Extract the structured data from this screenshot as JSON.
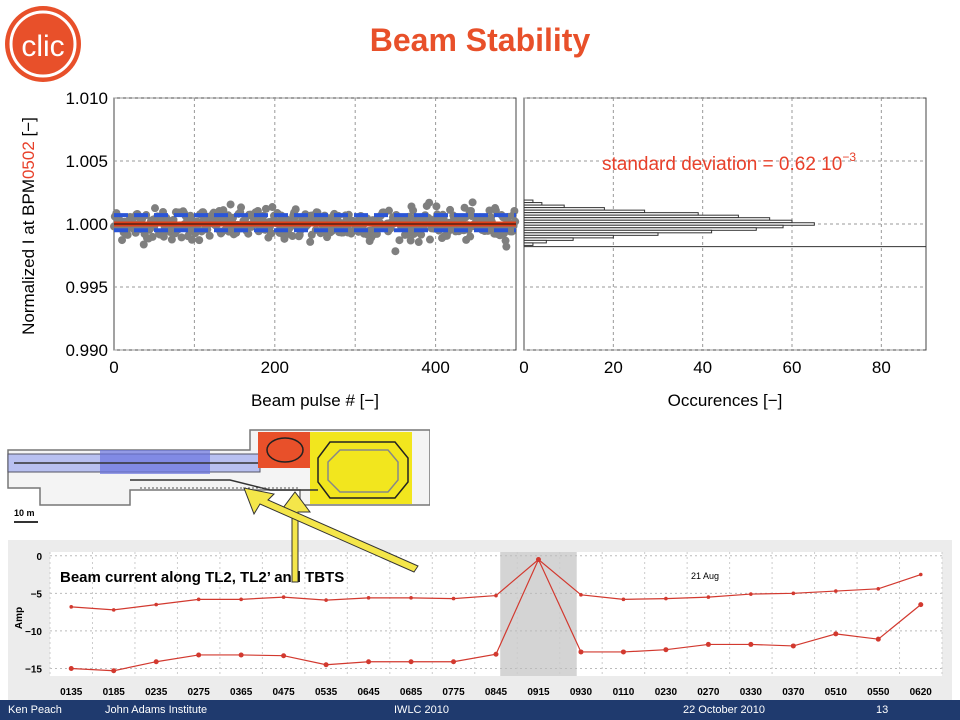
{
  "slide": {
    "title": "Beam Stability",
    "logo_text": "clic"
  },
  "footer": {
    "author": "Ken Peach",
    "institute": "John Adams Institute",
    "event": "IWLC 2010",
    "date": "22 October 2010",
    "page": "13"
  },
  "annotation": "standard deviation = 0.62 10",
  "annotation_exp": "−3",
  "map_scale": "10 m",
  "colors": {
    "title": "#e8502a",
    "scatter_point": "#7f7f7f",
    "band": "#2b55d6",
    "mean_line": "#e0401a",
    "annotation": "#e8402a",
    "trace": "#d2392f",
    "footer_bg": "#1f3a6e",
    "highlight": "#d4d4d4"
  },
  "chart_data": [
    {
      "type": "scatter",
      "ylabel_prefix": "Normalized I at BPM",
      "ylabel_colored": "0502",
      "ylabel_suffix": " [−]",
      "xlabel": "Beam pulse # [−]",
      "xlim": [
        0,
        500
      ],
      "ylim": [
        0.99,
        1.01
      ],
      "xticks": [
        "0",
        "200",
        "400"
      ],
      "yticks": [
        "0.990",
        "0.995",
        "1.000",
        "1.005",
        "1.010"
      ],
      "grid": true,
      "mean": 1.0,
      "band": [
        0.9995,
        1.0007
      ],
      "n_points": 500,
      "spread_sigma": 0.00062
    },
    {
      "type": "bar",
      "orientation": "horizontal",
      "xlabel": "Occurences [−]",
      "xlim": [
        0,
        90
      ],
      "xticks": [
        "0",
        "20",
        "40",
        "60",
        "80"
      ],
      "grid": true,
      "bins": [
        {
          "y": 1.0018,
          "count": 2
        },
        {
          "y": 1.0016,
          "count": 4
        },
        {
          "y": 1.0014,
          "count": 9
        },
        {
          "y": 1.0012,
          "count": 18
        },
        {
          "y": 1.001,
          "count": 27
        },
        {
          "y": 1.0008,
          "count": 39
        },
        {
          "y": 1.0006,
          "count": 48
        },
        {
          "y": 1.0004,
          "count": 55
        },
        {
          "y": 1.0002,
          "count": 60
        },
        {
          "y": 1.0,
          "count": 65
        },
        {
          "y": 0.9998,
          "count": 58
        },
        {
          "y": 0.9996,
          "count": 52
        },
        {
          "y": 0.9994,
          "count": 42
        },
        {
          "y": 0.9992,
          "count": 30
        },
        {
          "y": 0.999,
          "count": 20
        },
        {
          "y": 0.9988,
          "count": 11
        },
        {
          "y": 0.9986,
          "count": 5
        },
        {
          "y": 0.9984,
          "count": 2
        }
      ]
    },
    {
      "type": "line",
      "title": "Beam current along TL2, TL2’ and TBTS",
      "date_label": "21 Aug",
      "ylabel": "Amp",
      "ylim": [
        -16,
        0.5
      ],
      "yticks": [
        0,
        -5,
        -10,
        -15
      ],
      "categories": [
        "0135",
        "0185",
        "0235",
        "0275",
        "0365",
        "0475",
        "0535",
        "0645",
        "0685",
        "0775",
        "0845",
        "0915",
        "0930",
        "0110",
        "0230",
        "0270",
        "0330",
        "0370",
        "0510",
        "0550",
        "0620"
      ],
      "highlight_index": 11,
      "series": [
        {
          "values": [
            -6.8,
            -7.2,
            -6.5,
            -5.8,
            -5.8,
            -5.5,
            -5.9,
            -5.6,
            -5.6,
            -5.7,
            -5.3,
            -0.5,
            -5.2,
            -5.8,
            -5.7,
            -5.5,
            -5.1,
            -5.0,
            -4.7,
            -4.4,
            -2.5
          ]
        },
        {
          "values": [
            -15.0,
            -15.3,
            -14.1,
            -13.2,
            -13.2,
            -13.3,
            -14.5,
            -14.1,
            -14.1,
            -14.1,
            -13.1,
            -0.5,
            -12.8,
            -12.8,
            -12.5,
            -11.8,
            -11.8,
            -12.0,
            -10.4,
            -11.1,
            -6.5
          ]
        }
      ]
    }
  ]
}
